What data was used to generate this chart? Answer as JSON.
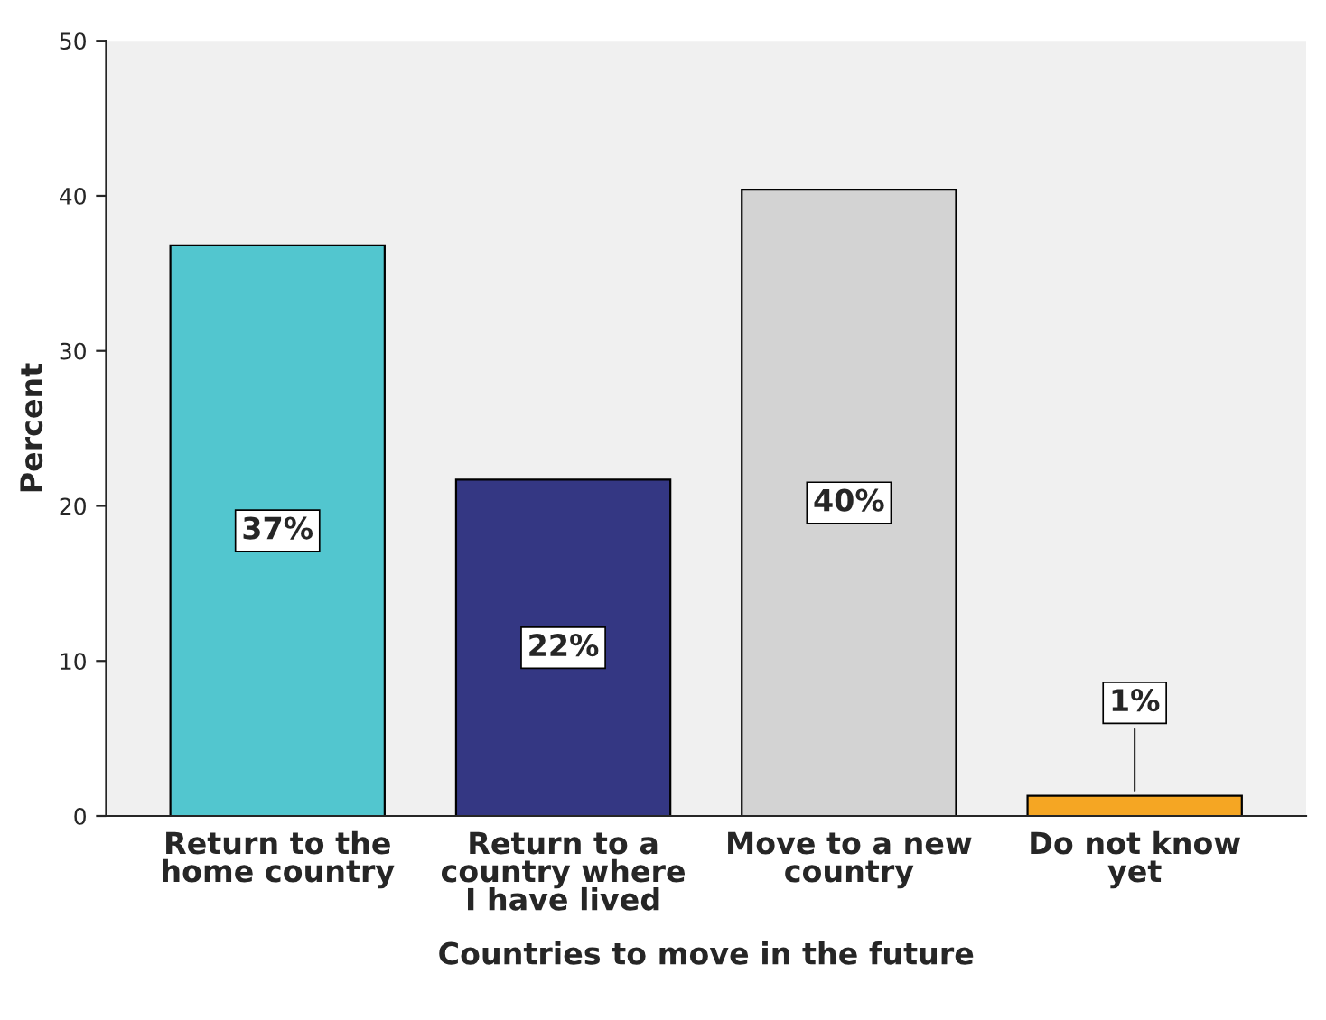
{
  "chart_data": {
    "type": "bar",
    "xlabel": "Countries to move in the future",
    "ylabel": "Percent",
    "categories": [
      "Return to the\nhome country",
      "Return to a\ncountry where\nI have lived",
      "Move to a new\ncountry",
      "Do not know\nyet"
    ],
    "values": [
      36.8,
      21.7,
      40.4,
      1.3
    ],
    "colors": [
      "#52c6cf",
      "#343783",
      "#d3d3d3",
      "#f5a623"
    ],
    "value_labels": [
      "37%",
      "22%",
      "40%",
      "1%"
    ],
    "ylim": [
      0,
      50
    ],
    "yticks": [
      0,
      10,
      20,
      30,
      40,
      50
    ],
    "grid": false,
    "legend": false
  }
}
